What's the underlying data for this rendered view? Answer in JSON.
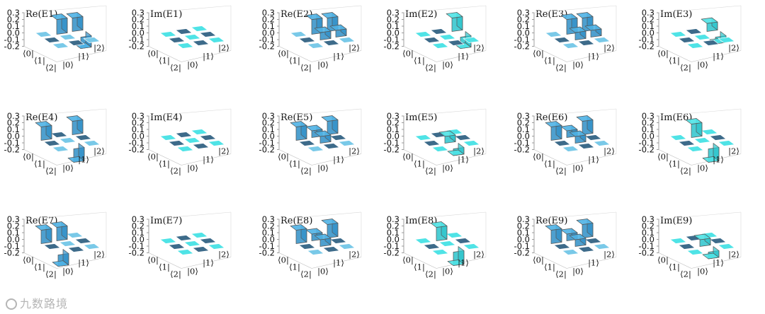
{
  "figure": {
    "watermark": "九数路境",
    "colors": {
      "re_top": "#4fb3e6",
      "re_side": "#2f8fc7",
      "im_top": "#4fe3e6",
      "im_side": "#2cc4cc",
      "zero_dark": "#3d6b8a",
      "zero_light": "#79c9e8",
      "axis": "#333333",
      "frame": "#666666"
    },
    "axis": {
      "zlim": [
        -0.2,
        0.3
      ],
      "zticks": [
        "0.3",
        "0.2",
        "0.1",
        "0.0",
        "-0.1",
        "-0.2"
      ],
      "row_ticks": [
        "⟨0|",
        "⟨1|",
        "⟨2|"
      ],
      "col_ticks": [
        "|0⟩",
        "|1⟩",
        "|2⟩"
      ]
    }
  },
  "chart_data": [
    {
      "type": "bar3d",
      "title": "Re(E1)",
      "row_labels": [
        "⟨0|",
        "⟨1|",
        "⟨2|"
      ],
      "col_labels": [
        "|0⟩",
        "|1⟩",
        "|2⟩"
      ],
      "zlim": [
        -0.2,
        0.3
      ],
      "matrix": [
        [
          0,
          0.22,
          0.2
        ],
        [
          0,
          0,
          -0.17
        ],
        [
          0,
          0,
          0
        ]
      ]
    },
    {
      "type": "bar3d",
      "title": "Im(E1)",
      "row_labels": [
        "⟨0|",
        "⟨1|",
        "⟨2|"
      ],
      "col_labels": [
        "|0⟩",
        "|1⟩",
        "|2⟩"
      ],
      "zlim": [
        -0.2,
        0.3
      ],
      "matrix": [
        [
          0,
          0,
          0
        ],
        [
          0,
          0,
          0
        ],
        [
          0,
          0,
          0
        ]
      ]
    },
    {
      "type": "bar3d",
      "title": "Re(E2)",
      "row_labels": [
        "⟨0|",
        "⟨1|",
        "⟨2|"
      ],
      "col_labels": [
        "|0⟩",
        "|1⟩",
        "|2⟩"
      ],
      "zlim": [
        -0.2,
        0.3
      ],
      "matrix": [
        [
          0,
          0.22,
          0.2
        ],
        [
          0,
          0.11,
          0.1
        ],
        [
          0,
          0,
          0
        ]
      ]
    },
    {
      "type": "bar3d",
      "title": "Im(E2)",
      "row_labels": [
        "⟨0|",
        "⟨1|",
        "⟨2|"
      ],
      "col_labels": [
        "|0⟩",
        "|1⟩",
        "|2⟩"
      ],
      "zlim": [
        -0.2,
        0.3
      ],
      "matrix": [
        [
          0,
          0,
          0.2
        ],
        [
          0,
          0,
          -0.17
        ],
        [
          0,
          0,
          0
        ]
      ]
    },
    {
      "type": "bar3d",
      "title": "Re(E3)",
      "row_labels": [
        "⟨0|",
        "⟨1|",
        "⟨2|"
      ],
      "col_labels": [
        "|0⟩",
        "|1⟩",
        "|2⟩"
      ],
      "zlim": [
        -0.2,
        0.3
      ],
      "matrix": [
        [
          0,
          0.22,
          0.2
        ],
        [
          0,
          0.11,
          0.1
        ],
        [
          0,
          0,
          0
        ]
      ]
    },
    {
      "type": "bar3d",
      "title": "Im(E3)",
      "row_labels": [
        "⟨0|",
        "⟨1|",
        "⟨2|"
      ],
      "col_labels": [
        "|0⟩",
        "|1⟩",
        "|2⟩"
      ],
      "zlim": [
        -0.2,
        0.3
      ],
      "matrix": [
        [
          0,
          0,
          0.12
        ],
        [
          0,
          0,
          -0.1
        ],
        [
          0,
          0,
          0
        ]
      ]
    },
    {
      "type": "bar3d",
      "title": "Re(E4)",
      "row_labels": [
        "⟨0|",
        "⟨1|",
        "⟨2|"
      ],
      "col_labels": [
        "|0⟩",
        "|1⟩",
        "|2⟩"
      ],
      "zlim": [
        -0.2,
        0.3
      ],
      "matrix": [
        [
          0.2,
          0,
          0.2
        ],
        [
          0,
          0,
          0
        ],
        [
          0,
          -0.2,
          0
        ]
      ]
    },
    {
      "type": "bar3d",
      "title": "Im(E4)",
      "row_labels": [
        "⟨0|",
        "⟨1|",
        "⟨2|"
      ],
      "col_labels": [
        "|0⟩",
        "|1⟩",
        "|2⟩"
      ],
      "zlim": [
        -0.2,
        0.3
      ],
      "matrix": [
        [
          0,
          0,
          0
        ],
        [
          0,
          0,
          0
        ],
        [
          0,
          0,
          0
        ]
      ]
    },
    {
      "type": "bar3d",
      "title": "Re(E5)",
      "row_labels": [
        "⟨0|",
        "⟨1|",
        "⟨2|"
      ],
      "col_labels": [
        "|0⟩",
        "|1⟩",
        "|2⟩"
      ],
      "zlim": [
        -0.2,
        0.3
      ],
      "matrix": [
        [
          0.2,
          0.1,
          0.2
        ],
        [
          0,
          0.1,
          0
        ],
        [
          0,
          0,
          0
        ]
      ]
    },
    {
      "type": "bar3d",
      "title": "Im(E5)",
      "row_labels": [
        "⟨0|",
        "⟨1|",
        "⟨2|"
      ],
      "col_labels": [
        "|0⟩",
        "|1⟩",
        "|2⟩"
      ],
      "zlim": [
        -0.2,
        0.3
      ],
      "matrix": [
        [
          0,
          0,
          0
        ],
        [
          0,
          0.1,
          0
        ],
        [
          0,
          -0.1,
          0
        ]
      ]
    },
    {
      "type": "bar3d",
      "title": "Re(E6)",
      "row_labels": [
        "⟨0|",
        "⟨1|",
        "⟨2|"
      ],
      "col_labels": [
        "|0⟩",
        "|1⟩",
        "|2⟩"
      ],
      "zlim": [
        -0.2,
        0.3
      ],
      "matrix": [
        [
          0.2,
          0.1,
          0.2
        ],
        [
          0,
          0.1,
          0
        ],
        [
          0,
          0,
          0
        ]
      ]
    },
    {
      "type": "bar3d",
      "title": "Im(E6)",
      "row_labels": [
        "⟨0|",
        "⟨1|",
        "⟨2|"
      ],
      "col_labels": [
        "|0⟩",
        "|1⟩",
        "|2⟩"
      ],
      "zlim": [
        -0.2,
        0.3
      ],
      "matrix": [
        [
          0,
          0.2,
          0
        ],
        [
          0,
          0,
          0
        ],
        [
          0,
          -0.2,
          0
        ]
      ]
    },
    {
      "type": "bar3d",
      "title": "Re(E7)",
      "row_labels": [
        "⟨0|",
        "⟨1|",
        "⟨2|"
      ],
      "col_labels": [
        "|0⟩",
        "|1⟩",
        "|2⟩"
      ],
      "zlim": [
        -0.2,
        0.3
      ],
      "matrix": [
        [
          0.2,
          0.2,
          0
        ],
        [
          0,
          0,
          0
        ],
        [
          -0.17,
          0,
          0
        ]
      ]
    },
    {
      "type": "bar3d",
      "title": "Im(E7)",
      "row_labels": [
        "⟨0|",
        "⟨1|",
        "⟨2|"
      ],
      "col_labels": [
        "|0⟩",
        "|1⟩",
        "|2⟩"
      ],
      "zlim": [
        -0.2,
        0.3
      ],
      "matrix": [
        [
          0,
          0,
          0
        ],
        [
          0,
          0,
          0
        ],
        [
          0,
          0,
          0
        ]
      ]
    },
    {
      "type": "bar3d",
      "title": "Re(E8)",
      "row_labels": [
        "⟨0|",
        "⟨1|",
        "⟨2|"
      ],
      "col_labels": [
        "|0⟩",
        "|1⟩",
        "|2⟩"
      ],
      "zlim": [
        -0.2,
        0.3
      ],
      "matrix": [
        [
          0.2,
          0.1,
          0.2
        ],
        [
          0,
          0.1,
          0
        ],
        [
          0,
          0,
          0
        ]
      ]
    },
    {
      "type": "bar3d",
      "title": "Im(E8)",
      "row_labels": [
        "⟨0|",
        "⟨1|",
        "⟨2|"
      ],
      "col_labels": [
        "|0⟩",
        "|1⟩",
        "|2⟩"
      ],
      "zlim": [
        -0.2,
        0.3
      ],
      "matrix": [
        [
          0,
          0.2,
          0
        ],
        [
          0,
          0,
          0
        ],
        [
          0,
          -0.2,
          0
        ]
      ]
    },
    {
      "type": "bar3d",
      "title": "Re(E9)",
      "row_labels": [
        "⟨0|",
        "⟨1|",
        "⟨2|"
      ],
      "col_labels": [
        "|0⟩",
        "|1⟩",
        "|2⟩"
      ],
      "zlim": [
        -0.2,
        0.3
      ],
      "matrix": [
        [
          0.2,
          0.1,
          0.2
        ],
        [
          0,
          0.1,
          0
        ],
        [
          0,
          0,
          0
        ]
      ]
    },
    {
      "type": "bar3d",
      "title": "Im(E9)",
      "row_labels": [
        "⟨0|",
        "⟨1|",
        "⟨2|"
      ],
      "col_labels": [
        "|0⟩",
        "|1⟩",
        "|2⟩"
      ],
      "zlim": [
        -0.2,
        0.3
      ],
      "matrix": [
        [
          0,
          0,
          0
        ],
        [
          0,
          0.1,
          0
        ],
        [
          0,
          -0.1,
          0
        ]
      ]
    }
  ]
}
